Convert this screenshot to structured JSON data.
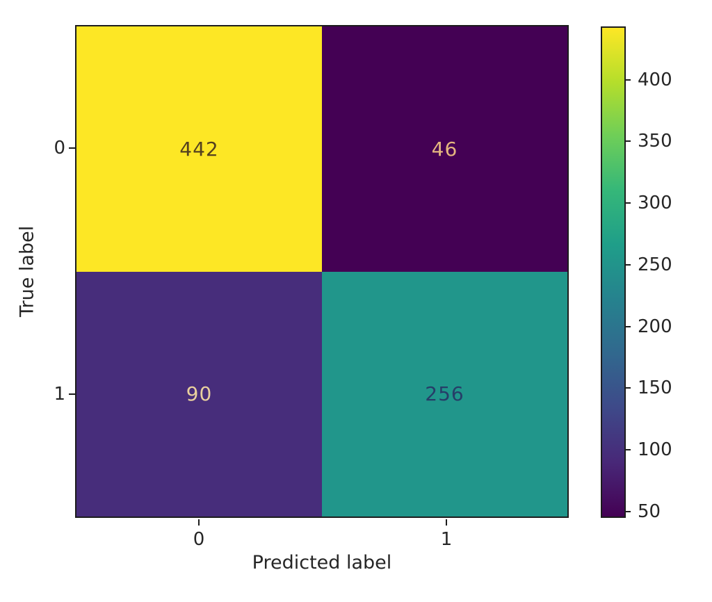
{
  "chart_data": {
    "type": "heatmap",
    "title": "",
    "xlabel": "Predicted label",
    "ylabel": "True label",
    "x_tick_labels": [
      "0",
      "1"
    ],
    "y_tick_labels": [
      "0",
      "1"
    ],
    "matrix": [
      [
        442,
        46
      ],
      [
        90,
        256
      ]
    ],
    "cells": [
      {
        "row": 0,
        "col": 0,
        "value": "442",
        "bg": "#fde725",
        "text_color": "#54411f"
      },
      {
        "row": 0,
        "col": 1,
        "value": "46",
        "bg": "#440154",
        "text_color": "#e5b77f"
      },
      {
        "row": 1,
        "col": 0,
        "value": "90",
        "bg": "#472d7b",
        "text_color": "#e9d09e"
      },
      {
        "row": 1,
        "col": 1,
        "value": "256",
        "bg": "#21968b",
        "text_color": "#263d68"
      }
    ],
    "colorbar": {
      "vmin": 46,
      "vmax": 442,
      "ticks": [
        50,
        100,
        150,
        200,
        250,
        300,
        350,
        400
      ],
      "gradient": [
        "#440154",
        "#482878",
        "#3e4989",
        "#31688e",
        "#26828e",
        "#1f9e89",
        "#35b779",
        "#6ece58",
        "#b5de2b",
        "#fde725"
      ]
    },
    "legend_position": "right-colorbar",
    "grid": false
  }
}
